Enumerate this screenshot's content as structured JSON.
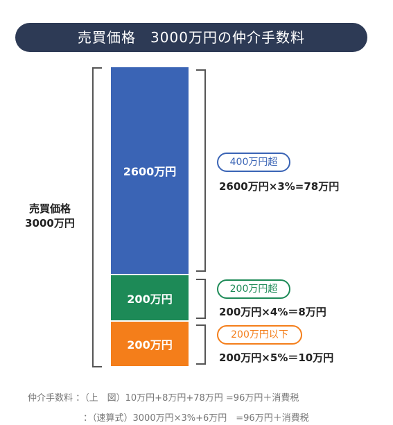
{
  "title": "売買価格　3000万円の仲介手数料",
  "total_label": {
    "line1": "売買価格",
    "line2": "3000万円"
  },
  "segments": [
    {
      "label": "2600万円",
      "tier": "400万円超",
      "formula": "2600万円×3%=78万円"
    },
    {
      "label": "200万円",
      "tier": "200万円超",
      "formula": "200万円×4%＝8万円"
    },
    {
      "label": "200万円",
      "tier": "200万円以下",
      "formula": "200万円×5%＝10万円"
    }
  ],
  "footer": {
    "line1": "仲介手数料 ：（上　図）10万円+8万円+78万円 =96万円＋消費税",
    "line2": "：（速算式）3000万円×3%+6万円　=96万円＋消費税"
  }
}
